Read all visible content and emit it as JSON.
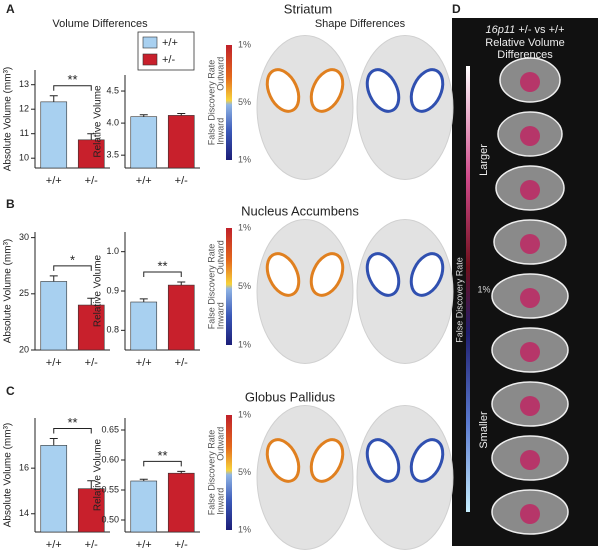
{
  "figure": {
    "panels": [
      "A",
      "B",
      "C",
      "D"
    ],
    "titles": [
      "Striatum",
      "Nucleus Accumbens",
      "Globus Pallidus"
    ],
    "volume_heading": "Volume Differences",
    "shape_heading": "Shape Differences",
    "legend": [
      {
        "label": "+/+",
        "color": "#a8d0f0"
      },
      {
        "label": "+/-",
        "color": "#c8202c"
      }
    ],
    "fdr_scale": {
      "label": "False Discovery Rate",
      "top": "1%",
      "mid": "5%",
      "bottom": "1%",
      "upper": "Outward",
      "lower": "Inward"
    },
    "panel_d": {
      "title_gene": "16p11",
      "title_rest": " +/- vs +/+",
      "line2": "Relative Volume",
      "line3": "Differences",
      "larger": "Larger",
      "smaller": "Smaller",
      "scale_label": "False Discovery Rate",
      "scale_value": "1%"
    }
  },
  "chart_data": [
    {
      "type": "bar",
      "ylabel": "Absolute Volume (mm³)",
      "categories": [
        "+/+",
        "+/-"
      ],
      "values": [
        12.3,
        10.75
      ],
      "errors": [
        0.25,
        0.25
      ],
      "colors": [
        "#a8d0f0",
        "#c8202c"
      ],
      "ylim": [
        9.6,
        13.6
      ],
      "yticks": [
        10,
        11,
        12,
        13
      ],
      "annotation": "**"
    },
    {
      "type": "bar",
      "ylabel": "Relative Volume",
      "categories": [
        "+/+",
        "+/-"
      ],
      "values": [
        4.1,
        4.12
      ],
      "errors": [
        0.03,
        0.03
      ],
      "colors": [
        "#a8d0f0",
        "#c8202c"
      ],
      "ylim": [
        3.3,
        4.75
      ],
      "yticks": [
        3.5,
        {
          "value": 4,
          "label": "4.0"
        },
        4.5
      ]
    },
    {
      "type": "bar",
      "ylabel": "Absolute Volume (mm³)",
      "categories": [
        "+/+",
        "+/-"
      ],
      "values": [
        26.1,
        24
      ],
      "errors": [
        0.5,
        0.6
      ],
      "colors": [
        "#a8d0f0",
        "#c8202c"
      ],
      "ylim": [
        20,
        30.5
      ],
      "yticks": [
        20,
        25,
        30
      ],
      "annotation": "*"
    },
    {
      "type": "bar",
      "ylabel": "Relative Volume",
      "categories": [
        "+/+",
        "+/-"
      ],
      "values": [
        0.872,
        0.915
      ],
      "errors": [
        0.008,
        0.008
      ],
      "colors": [
        "#a8d0f0",
        "#c8202c"
      ],
      "ylim": [
        0.75,
        1.05
      ],
      "yticks": [
        0.8,
        0.9,
        {
          "value": 1,
          "label": "1.0"
        }
      ],
      "annotation": "**"
    },
    {
      "type": "bar",
      "ylabel": "Absolute Volume (mm³)",
      "categories": [
        "+/+",
        "+/-"
      ],
      "values": [
        17,
        15.1
      ],
      "errors": [
        0.3,
        0.35
      ],
      "colors": [
        "#a8d0f0",
        "#c8202c"
      ],
      "ylim": [
        13.2,
        18.2
      ],
      "yticks": [
        14,
        16
      ],
      "annotation": "**"
    },
    {
      "type": "bar",
      "ylabel": "Relative Volume",
      "categories": [
        "+/+",
        "+/-"
      ],
      "values": [
        0.565,
        0.578
      ],
      "errors": [
        0.003,
        0.003
      ],
      "colors": [
        "#a8d0f0",
        "#c8202c"
      ],
      "ylim": [
        0.48,
        0.67
      ],
      "yticks": [
        {
          "value": 0.5,
          "label": "0.50"
        },
        0.55,
        {
          "value": 0.6,
          "label": "0.60"
        },
        0.65
      ],
      "annotation": "**"
    }
  ]
}
